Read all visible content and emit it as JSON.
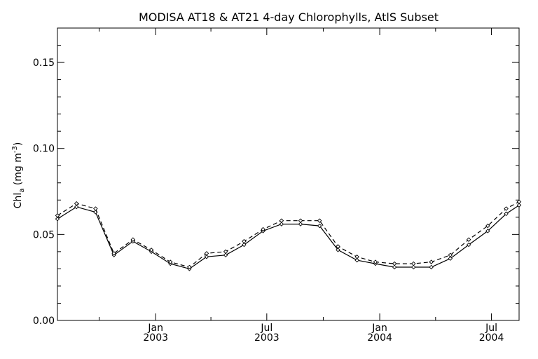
{
  "chart_data": {
    "type": "line",
    "title": "MODISA AT18 & AT21 4-day Chlorophylls, AtlS Subset",
    "ylabel": {
      "main": "Chl",
      "sub": "a",
      "rest": " (mg m",
      "sup": "-3",
      "close": ")"
    },
    "xlabel": "",
    "ylim": [
      0.0,
      0.17
    ],
    "y_ticks": [
      {
        "value": 0.0,
        "label": "0.00"
      },
      {
        "value": 0.05,
        "label": "0.05"
      },
      {
        "value": 0.1,
        "label": "0.10"
      },
      {
        "value": 0.15,
        "label": "0.15"
      }
    ],
    "y_minor_step": 0.01,
    "xlim": [
      "2002-07-25",
      "2004-08-15"
    ],
    "x_ticks": [
      {
        "date": "2003-01-01",
        "line1": "Jan",
        "line2": "2003"
      },
      {
        "date": "2003-07-01",
        "line1": "Jul",
        "line2": "2003"
      },
      {
        "date": "2004-01-01",
        "line1": "Jan",
        "line2": "2004"
      },
      {
        "date": "2004-07-01",
        "line1": "Jul",
        "line2": "2004"
      }
    ],
    "x_minor_ticks": [
      "2002-10-01",
      "2003-04-01",
      "2003-10-01",
      "2004-04-01"
    ],
    "grid": false,
    "series": [
      {
        "style": "solid",
        "x": [
          "2002-07-25",
          "2002-08-25",
          "2002-09-25",
          "2002-10-25",
          "2002-11-25",
          "2002-12-25",
          "2003-01-25",
          "2003-02-25",
          "2003-03-25",
          "2003-04-25",
          "2003-05-25",
          "2003-06-25",
          "2003-07-25",
          "2003-08-25",
          "2003-09-25",
          "2003-10-25",
          "2003-11-25",
          "2003-12-25",
          "2004-01-25",
          "2004-02-25",
          "2004-03-25",
          "2004-04-25",
          "2004-05-25",
          "2004-06-25",
          "2004-07-25",
          "2004-08-15"
        ],
        "values": [
          0.059,
          0.066,
          0.063,
          0.038,
          0.046,
          0.04,
          0.033,
          0.03,
          0.037,
          0.038,
          0.044,
          0.052,
          0.056,
          0.056,
          0.055,
          0.041,
          0.035,
          0.033,
          0.031,
          0.031,
          0.031,
          0.036,
          0.044,
          0.052,
          0.062,
          0.067
        ]
      },
      {
        "style": "dashed",
        "x": [
          "2002-07-25",
          "2002-08-25",
          "2002-09-25",
          "2002-10-25",
          "2002-11-25",
          "2002-12-25",
          "2003-01-25",
          "2003-02-25",
          "2003-03-25",
          "2003-04-25",
          "2003-05-25",
          "2003-06-25",
          "2003-07-25",
          "2003-08-25",
          "2003-09-25",
          "2003-10-25",
          "2003-11-25",
          "2003-12-25",
          "2004-01-25",
          "2004-02-25",
          "2004-03-25",
          "2004-04-25",
          "2004-05-25",
          "2004-06-25",
          "2004-07-25",
          "2004-08-15"
        ],
        "values": [
          0.061,
          0.068,
          0.065,
          0.039,
          0.047,
          0.041,
          0.034,
          0.031,
          0.039,
          0.04,
          0.046,
          0.053,
          0.058,
          0.058,
          0.058,
          0.043,
          0.037,
          0.034,
          0.033,
          0.033,
          0.034,
          0.038,
          0.047,
          0.055,
          0.065,
          0.069
        ]
      }
    ]
  }
}
